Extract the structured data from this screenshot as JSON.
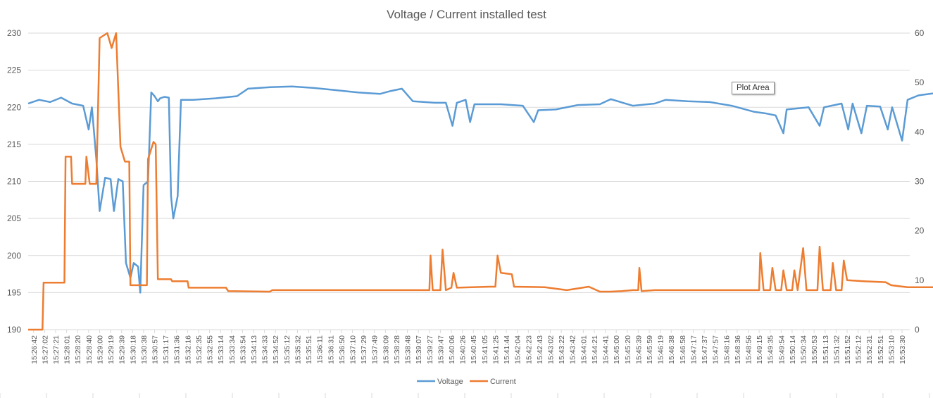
{
  "chart_data": {
    "type": "line",
    "title": "Voltage / Current installed test",
    "y_left": {
      "range": [
        190,
        230
      ],
      "ticks": [
        190,
        195,
        200,
        205,
        210,
        215,
        220,
        225,
        230
      ]
    },
    "y_right": {
      "range": [
        0,
        60
      ],
      "ticks": [
        0,
        10,
        20,
        30,
        40,
        50,
        60
      ]
    },
    "x_ticks": [
      "15:26:42",
      "15:27:02",
      "15:27:21",
      "15:28:01",
      "15:28:20",
      "15:28:40",
      "15:29:00",
      "15:29:19",
      "15:29:39",
      "15:30:18",
      "15:30:38",
      "15:30:57",
      "15:31:17",
      "15:31:36",
      "15:32:16",
      "15:32:35",
      "15:32:55",
      "15:33:14",
      "15:33:34",
      "15:33:54",
      "15:34:13",
      "15:34:33",
      "15:34:52",
      "15:35:12",
      "15:35:32",
      "15:35:51",
      "15:36:11",
      "15:36:31",
      "15:36:50",
      "15:37:10",
      "15:37:29",
      "15:37:49",
      "15:38:09",
      "15:38:28",
      "15:38:48",
      "15:39:07",
      "15:39:27",
      "15:39:47",
      "15:40:06",
      "15:40:26",
      "15:40:45",
      "15:41:05",
      "15:41:25",
      "15:41:44",
      "15:42:04",
      "15:42:23",
      "15:42:43",
      "15:43:02",
      "15:43:22",
      "15:43:42",
      "15:44:01",
      "15:44:21",
      "15:44:41",
      "15:45:00",
      "15:45:20",
      "15:45:39",
      "15:45:59",
      "15:46:19",
      "15:46:38",
      "15:46:58",
      "15:47:17",
      "15:47:37",
      "15:47:57",
      "15:48:16",
      "15:48:36",
      "15:48:56",
      "15:49:15",
      "15:49:35",
      "15:49:54",
      "15:50:14",
      "15:50:34",
      "15:50:53",
      "15:51:13",
      "15:51:32",
      "15:51:52",
      "15:52:12",
      "15:52:31",
      "15:52:51",
      "15:53:10",
      "15:53:30"
    ],
    "series": [
      {
        "name": "Voltage",
        "axis": "left",
        "color": "#5B9BD5",
        "points": [
          [
            0,
            220.5
          ],
          [
            1,
            221
          ],
          [
            2,
            220.7
          ],
          [
            3,
            221.3
          ],
          [
            4,
            220.5
          ],
          [
            5,
            220.2
          ],
          [
            5.5,
            217
          ],
          [
            5.8,
            220
          ],
          [
            6.2,
            213
          ],
          [
            6.5,
            206
          ],
          [
            7,
            210.5
          ],
          [
            7.5,
            210.3
          ],
          [
            7.8,
            206
          ],
          [
            8.2,
            210.3
          ],
          [
            8.6,
            210
          ],
          [
            8.9,
            199
          ],
          [
            9.3,
            197
          ],
          [
            9.6,
            199
          ],
          [
            10,
            198.5
          ],
          [
            10.2,
            195
          ],
          [
            10.5,
            209.5
          ],
          [
            10.9,
            210
          ],
          [
            11.2,
            222
          ],
          [
            11.5,
            221.5
          ],
          [
            11.8,
            220.8
          ],
          [
            12,
            221.2
          ],
          [
            12.4,
            221.4
          ],
          [
            12.8,
            221.3
          ],
          [
            13,
            208
          ],
          [
            13.2,
            205
          ],
          [
            13.6,
            208
          ],
          [
            13.9,
            221
          ],
          [
            15,
            221
          ],
          [
            17,
            221.2
          ],
          [
            19,
            221.5
          ],
          [
            20,
            222.5
          ],
          [
            22,
            222.7
          ],
          [
            24,
            222.8
          ],
          [
            26,
            222.6
          ],
          [
            28,
            222.3
          ],
          [
            30,
            222
          ],
          [
            32,
            221.8
          ],
          [
            33,
            222.2
          ],
          [
            34,
            222.5
          ],
          [
            35,
            220.8
          ],
          [
            37,
            220.6
          ],
          [
            38,
            220.6
          ],
          [
            38.6,
            217.5
          ],
          [
            39,
            220.6
          ],
          [
            39.8,
            221
          ],
          [
            40.2,
            218
          ],
          [
            40.6,
            220.4
          ],
          [
            43,
            220.4
          ],
          [
            45,
            220.2
          ],
          [
            46,
            218
          ],
          [
            46.4,
            219.6
          ],
          [
            48,
            219.7
          ],
          [
            50,
            220.3
          ],
          [
            52,
            220.4
          ],
          [
            53,
            221.1
          ],
          [
            55,
            220.2
          ],
          [
            57,
            220.5
          ],
          [
            58,
            221
          ],
          [
            60,
            220.8
          ],
          [
            62,
            220.7
          ],
          [
            64,
            220.2
          ],
          [
            66,
            219.4
          ],
          [
            67,
            219.2
          ],
          [
            68,
            218.9
          ],
          [
            68.7,
            216.5
          ],
          [
            69,
            219.7
          ],
          [
            71,
            220
          ],
          [
            72,
            217.5
          ],
          [
            72.4,
            220
          ],
          [
            74,
            220.5
          ],
          [
            74.6,
            217
          ],
          [
            75,
            220.5
          ],
          [
            75.8,
            216.5
          ],
          [
            76.3,
            220.2
          ],
          [
            77.5,
            220.1
          ],
          [
            78.2,
            217
          ],
          [
            78.6,
            220
          ],
          [
            79.5,
            215.5
          ],
          [
            80,
            221
          ],
          [
            81,
            221.6
          ],
          [
            82,
            221.8
          ],
          [
            84,
            222.2
          ],
          [
            86,
            222.5
          ],
          [
            88,
            222.4
          ],
          [
            89,
            222.8
          ],
          [
            90,
            223.3
          ],
          [
            92,
            223.1
          ],
          [
            94,
            222.9
          ],
          [
            96,
            222.8
          ]
        ]
      },
      {
        "name": "Current",
        "axis": "right",
        "color": "#ED7D31",
        "points": [
          [
            0,
            0
          ],
          [
            1.3,
            0
          ],
          [
            1.4,
            9.5
          ],
          [
            3.3,
            9.5
          ],
          [
            3.4,
            35
          ],
          [
            3.9,
            35
          ],
          [
            4,
            29.5
          ],
          [
            5.2,
            29.5
          ],
          [
            5.3,
            35
          ],
          [
            5.6,
            29.5
          ],
          [
            6.2,
            29.5
          ],
          [
            6.5,
            59
          ],
          [
            7.2,
            60
          ],
          [
            7.6,
            57
          ],
          [
            8,
            60
          ],
          [
            8.4,
            37
          ],
          [
            8.8,
            34
          ],
          [
            9.2,
            34
          ],
          [
            9.3,
            9
          ],
          [
            10.8,
            9
          ],
          [
            10.9,
            34.5
          ],
          [
            11.4,
            38
          ],
          [
            11.6,
            37.5
          ],
          [
            11.8,
            10.2
          ],
          [
            13,
            10.2
          ],
          [
            13.1,
            9.8
          ],
          [
            14.5,
            9.8
          ],
          [
            14.6,
            8.5
          ],
          [
            18,
            8.5
          ],
          [
            18.2,
            7.8
          ],
          [
            22,
            7.7
          ],
          [
            22.2,
            8
          ],
          [
            26,
            8
          ],
          [
            30,
            8
          ],
          [
            35,
            8
          ],
          [
            36.5,
            8
          ],
          [
            36.6,
            15
          ],
          [
            36.8,
            8
          ],
          [
            37.5,
            8
          ],
          [
            37.7,
            16.2
          ],
          [
            38,
            8
          ],
          [
            38.5,
            8.5
          ],
          [
            38.7,
            11.5
          ],
          [
            39,
            8.5
          ],
          [
            42,
            8.7
          ],
          [
            42.5,
            8.7
          ],
          [
            42.7,
            15
          ],
          [
            43,
            11.5
          ],
          [
            44,
            11.2
          ],
          [
            44.2,
            8.7
          ],
          [
            47,
            8.6
          ],
          [
            49,
            8
          ],
          [
            51,
            8.7
          ],
          [
            52,
            7.7
          ],
          [
            53,
            7.7
          ],
          [
            54,
            7.8
          ],
          [
            55,
            8
          ],
          [
            55.5,
            8
          ],
          [
            55.6,
            12.5
          ],
          [
            55.8,
            7.8
          ],
          [
            57,
            8
          ],
          [
            59,
            8
          ],
          [
            63,
            8
          ],
          [
            66.5,
            8
          ],
          [
            66.6,
            15.5
          ],
          [
            66.9,
            8
          ],
          [
            67.5,
            8
          ],
          [
            67.7,
            12.5
          ],
          [
            68,
            8
          ],
          [
            68.5,
            8
          ],
          [
            68.7,
            12
          ],
          [
            69,
            8
          ],
          [
            69.5,
            8
          ],
          [
            69.7,
            12
          ],
          [
            70,
            8
          ],
          [
            70.5,
            16.5
          ],
          [
            70.8,
            8
          ],
          [
            71.8,
            8
          ],
          [
            72,
            16.8
          ],
          [
            72.3,
            8
          ],
          [
            73,
            8
          ],
          [
            73.2,
            13.5
          ],
          [
            73.5,
            8
          ],
          [
            74,
            8
          ],
          [
            74.2,
            14
          ],
          [
            74.5,
            10
          ],
          [
            76,
            9.8
          ],
          [
            78,
            9.6
          ],
          [
            78.5,
            9
          ],
          [
            80,
            8.6
          ],
          [
            82,
            8.6
          ],
          [
            84,
            8.6
          ],
          [
            86,
            8.5
          ],
          [
            88,
            8.4
          ],
          [
            89,
            7.9
          ],
          [
            96,
            7.8
          ]
        ]
      }
    ],
    "legend": {
      "position": "bottom",
      "items": [
        "Voltage",
        "Current"
      ]
    },
    "grid": {
      "horizontal": true,
      "vertical": false
    }
  },
  "tooltip": "Plot Area"
}
